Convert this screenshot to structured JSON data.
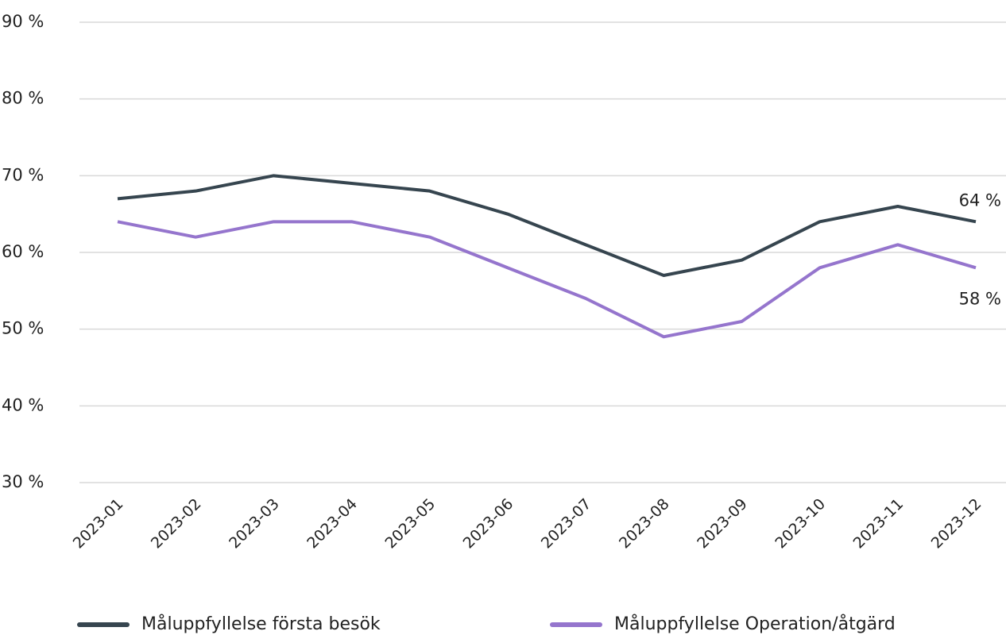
{
  "chart_data": {
    "type": "line",
    "categories": [
      "2023-01",
      "2023-02",
      "2023-03",
      "2023-04",
      "2023-05",
      "2023-06",
      "2023-07",
      "2023-08",
      "2023-09",
      "2023-10",
      "2023-11",
      "2023-12"
    ],
    "series": [
      {
        "name": "Måluppfyllelse första besök",
        "color": "#36454f",
        "values": [
          67,
          68,
          70,
          69,
          68,
          65,
          61,
          57,
          59,
          64,
          66,
          64
        ],
        "value_labels": [
          null,
          null,
          null,
          null,
          null,
          null,
          null,
          null,
          null,
          null,
          null,
          "64 %"
        ]
      },
      {
        "name": "Måluppfyllelse Operation/åtgärd",
        "color": "#9575cd",
        "values": [
          64,
          62,
          64,
          64,
          62,
          58,
          54,
          49,
          51,
          58,
          61,
          58
        ],
        "value_labels": [
          null,
          null,
          null,
          null,
          null,
          null,
          null,
          null,
          null,
          null,
          null,
          "58 %"
        ]
      }
    ],
    "ylim": [
      30,
      90
    ],
    "yticks": [
      {
        "value": 30,
        "label": "30 %"
      },
      {
        "value": 40,
        "label": "40 %"
      },
      {
        "value": 50,
        "label": "50 %"
      },
      {
        "value": 60,
        "label": "60 %"
      },
      {
        "value": 70,
        "label": "70 %"
      },
      {
        "value": 80,
        "label": "80 %"
      },
      {
        "value": 90,
        "label": "90 %"
      }
    ],
    "grid": true,
    "legend": "bottom"
  }
}
